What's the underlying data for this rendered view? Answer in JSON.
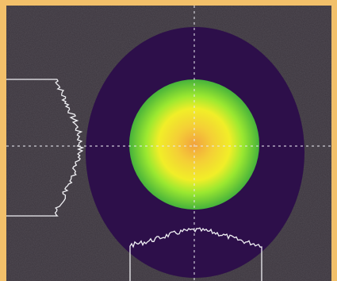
{
  "colors": {
    "frame": "#f2c06a",
    "screen_background": "#3b353d",
    "beam_halo": "#2d0f4a",
    "spot_edge": "#46b23b",
    "spot_mid": "#9be830",
    "spot_yellow": "#f1ee28",
    "spot_center": "#f2a23e",
    "crosshair": "#e8e8f0",
    "profile_trace": "#f0f0f4"
  },
  "icons": {
    "crosshair": "dashed-crosshair-icon",
    "beam_spot": "circular-beam-spot-icon"
  }
}
